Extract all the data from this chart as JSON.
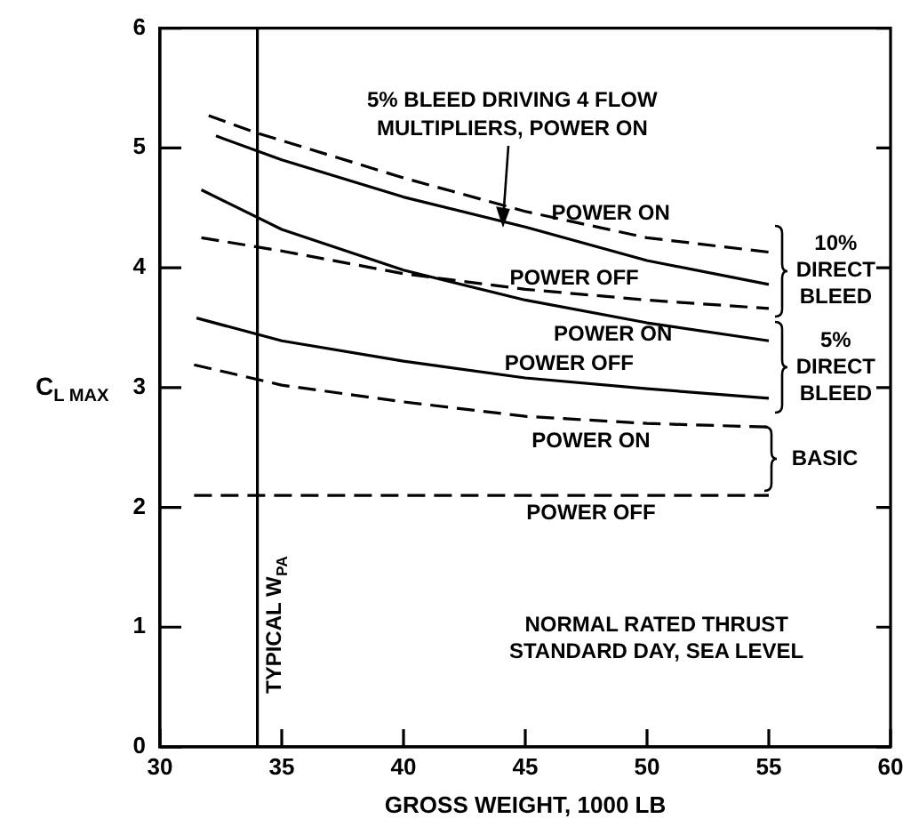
{
  "chart_data": {
    "type": "line",
    "xlabel": "GROSS WEIGHT, 1000 LB",
    "ylabel": "C$_{L MAX}$",
    "xlim": [
      30,
      60
    ],
    "xticks": [
      30,
      35,
      40,
      45,
      50,
      55,
      60
    ],
    "ylim": [
      0,
      6
    ],
    "yticks": [
      0,
      1,
      2,
      3,
      4,
      5,
      6
    ],
    "grid": false,
    "legend": false,
    "marker": "none",
    "series": [
      {
        "color": "#000000",
        "line_style": "dashed",
        "x": [
          32,
          33.9,
          40,
          45,
          50,
          55
        ],
        "values": [
          5.27,
          5.13,
          4.75,
          4.47,
          4.25,
          4.13
        ]
      },
      {
        "color": "#000000",
        "line_style": "solid",
        "x": [
          32.3,
          35,
          40,
          45,
          50,
          55
        ],
        "values": [
          5.1,
          4.9,
          4.59,
          4.34,
          4.06,
          3.86
        ]
      },
      {
        "color": "#000000",
        "line_style": "dashed",
        "x": [
          31.7,
          35,
          40,
          45,
          50,
          55
        ],
        "values": [
          4.25,
          4.14,
          3.95,
          3.82,
          3.73,
          3.66
        ]
      },
      {
        "color": "#000000",
        "line_style": "solid",
        "x": [
          31.7,
          35,
          40,
          45,
          50,
          55
        ],
        "values": [
          4.65,
          4.32,
          3.98,
          3.73,
          3.54,
          3.39
        ]
      },
      {
        "color": "#000000",
        "line_style": "solid",
        "x": [
          31.5,
          35,
          40,
          45,
          50,
          55
        ],
        "values": [
          3.58,
          3.39,
          3.22,
          3.08,
          2.99,
          2.91
        ]
      },
      {
        "color": "#000000",
        "line_style": "dashed",
        "x": [
          31.4,
          35,
          40,
          45,
          50,
          55
        ],
        "values": [
          3.19,
          3.02,
          2.88,
          2.76,
          2.7,
          2.67
        ]
      },
      {
        "color": "#000000",
        "line_style": "dashed",
        "x": [
          31.4,
          55
        ],
        "values": [
          2.1,
          2.1
        ]
      }
    ],
    "ref_lines": [
      {
        "axis": "x",
        "value": 34,
        "label": "TYPICAL W$_{PA}$",
        "color": "#000000"
      }
    ],
    "annotations": [
      {
        "text": "5% BLEED DRIVING 4 FLOW\nMULTIPLIERS, POWER ON",
        "x": 44.1,
        "y": 4.37
      },
      "POWER ON",
      "POWER OFF",
      "POWER ON",
      "POWER OFF",
      "POWER ON",
      "POWER OFF",
      "10%\nDIRECT\nBLEED",
      "5%\nDIRECT\nBLEED",
      "BASIC",
      "NORMAL RATED THRUST\nSTANDARD DAY, SEA LEVEL"
    ]
  }
}
